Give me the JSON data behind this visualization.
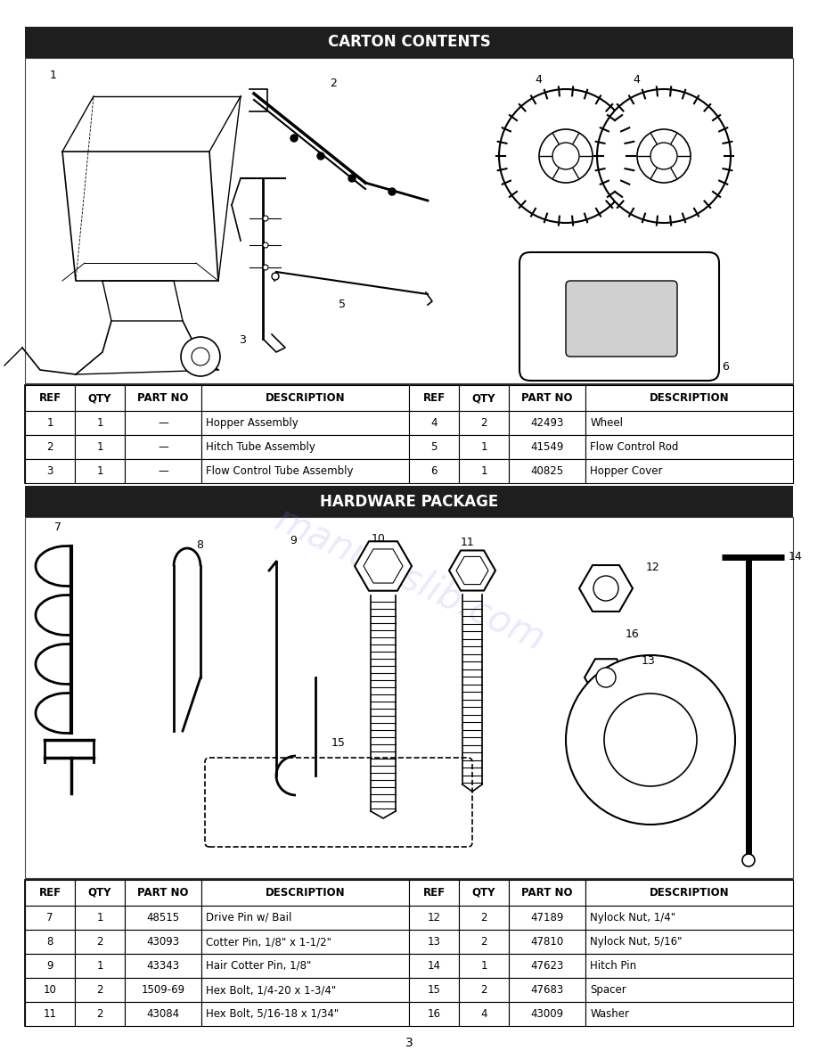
{
  "page_bg": "#ffffff",
  "header_bg": "#1e1e1e",
  "header_text_color": "#ffffff",
  "section1_title": "CARTON CONTENTS",
  "section2_title": "HARDWARE PACKAGE",
  "page_number": "3",
  "carton_table_headers": [
    "REF",
    "QTY",
    "PART NO",
    "DESCRIPTION",
    "REF",
    "QTY",
    "PART NO",
    "DESCRIPTION"
  ],
  "carton_rows": [
    [
      "1",
      "1",
      "—",
      "Hopper Assembly",
      "4",
      "2",
      "42493",
      "Wheel"
    ],
    [
      "2",
      "1",
      "—",
      "Hitch Tube Assembly",
      "5",
      "1",
      "41549",
      "Flow Control Rod"
    ],
    [
      "3",
      "1",
      "—",
      "Flow Control Tube Assembly",
      "6",
      "1",
      "40825",
      "Hopper Cover"
    ]
  ],
  "hardware_table_headers": [
    "REF",
    "QTY",
    "PART NO",
    "DESCRIPTION",
    "REF",
    "QTY",
    "PART NO",
    "DESCRIPTION"
  ],
  "hardware_rows": [
    [
      "7",
      "1",
      "48515",
      "Drive Pin w/ Bail",
      "12",
      "2",
      "47189",
      "Nylock Nut, 1/4\""
    ],
    [
      "8",
      "2",
      "43093",
      "Cotter Pin, 1/8\" x 1-1/2\"",
      "13",
      "2",
      "47810",
      "Nylock Nut, 5/16\""
    ],
    [
      "9",
      "1",
      "43343",
      "Hair Cotter Pin, 1/8\"",
      "14",
      "1",
      "47623",
      "Hitch Pin"
    ],
    [
      "10",
      "2",
      "1509-69",
      "Hex Bolt, 1/4-20 x 1-3/4\"",
      "15",
      "2",
      "47683",
      "Spacer"
    ],
    [
      "11",
      "2",
      "43084",
      "Hex Bolt, 5/16-18 x 1/34\"",
      "16",
      "4",
      "43009",
      "Washer"
    ]
  ],
  "col_props": [
    0.065,
    0.065,
    0.1,
    0.27,
    0.065,
    0.065,
    0.1,
    0.27
  ],
  "watermark_text": "manualslib.com",
  "watermark_color": "#8888ff",
  "watermark_alpha": 0.18
}
